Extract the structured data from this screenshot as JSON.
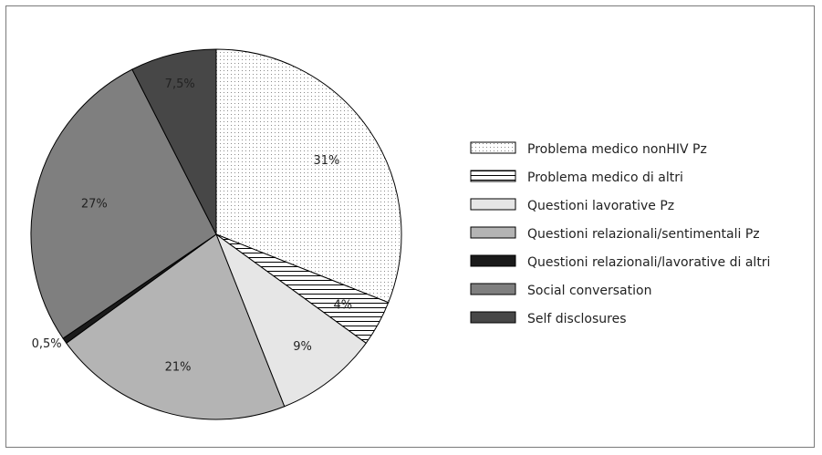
{
  "chart_data": {
    "type": "pie",
    "title": "",
    "series": [
      {
        "name": "Problema medico nonHIV Pz",
        "value": 31,
        "label": "31%",
        "fill": "dots",
        "color": "#ffffff"
      },
      {
        "name": "Problema medico di altri",
        "value": 4,
        "label": "4%",
        "fill": "hlines",
        "color": "#ffffff"
      },
      {
        "name": "Questioni lavorative Pz",
        "value": 9,
        "label": "9%",
        "fill": "solid",
        "color": "#e6e6e6"
      },
      {
        "name": "Questioni relazionali/sentimentali Pz",
        "value": 21,
        "label": "21%",
        "fill": "solid",
        "color": "#b4b4b4"
      },
      {
        "name": "Questioni relazionali/lavorative di altri",
        "value": 0.5,
        "label": "0,5%",
        "fill": "solid",
        "color": "#1a1a1a"
      },
      {
        "name": "Social conversation",
        "value": 27,
        "label": "27%",
        "fill": "solid",
        "color": "#7f7f7f"
      },
      {
        "name": "Self disclosures",
        "value": 7.5,
        "label": "7,5%",
        "fill": "solid",
        "color": "#474747"
      }
    ],
    "legend_position": "right",
    "start": "12 o'clock, clockwise"
  }
}
